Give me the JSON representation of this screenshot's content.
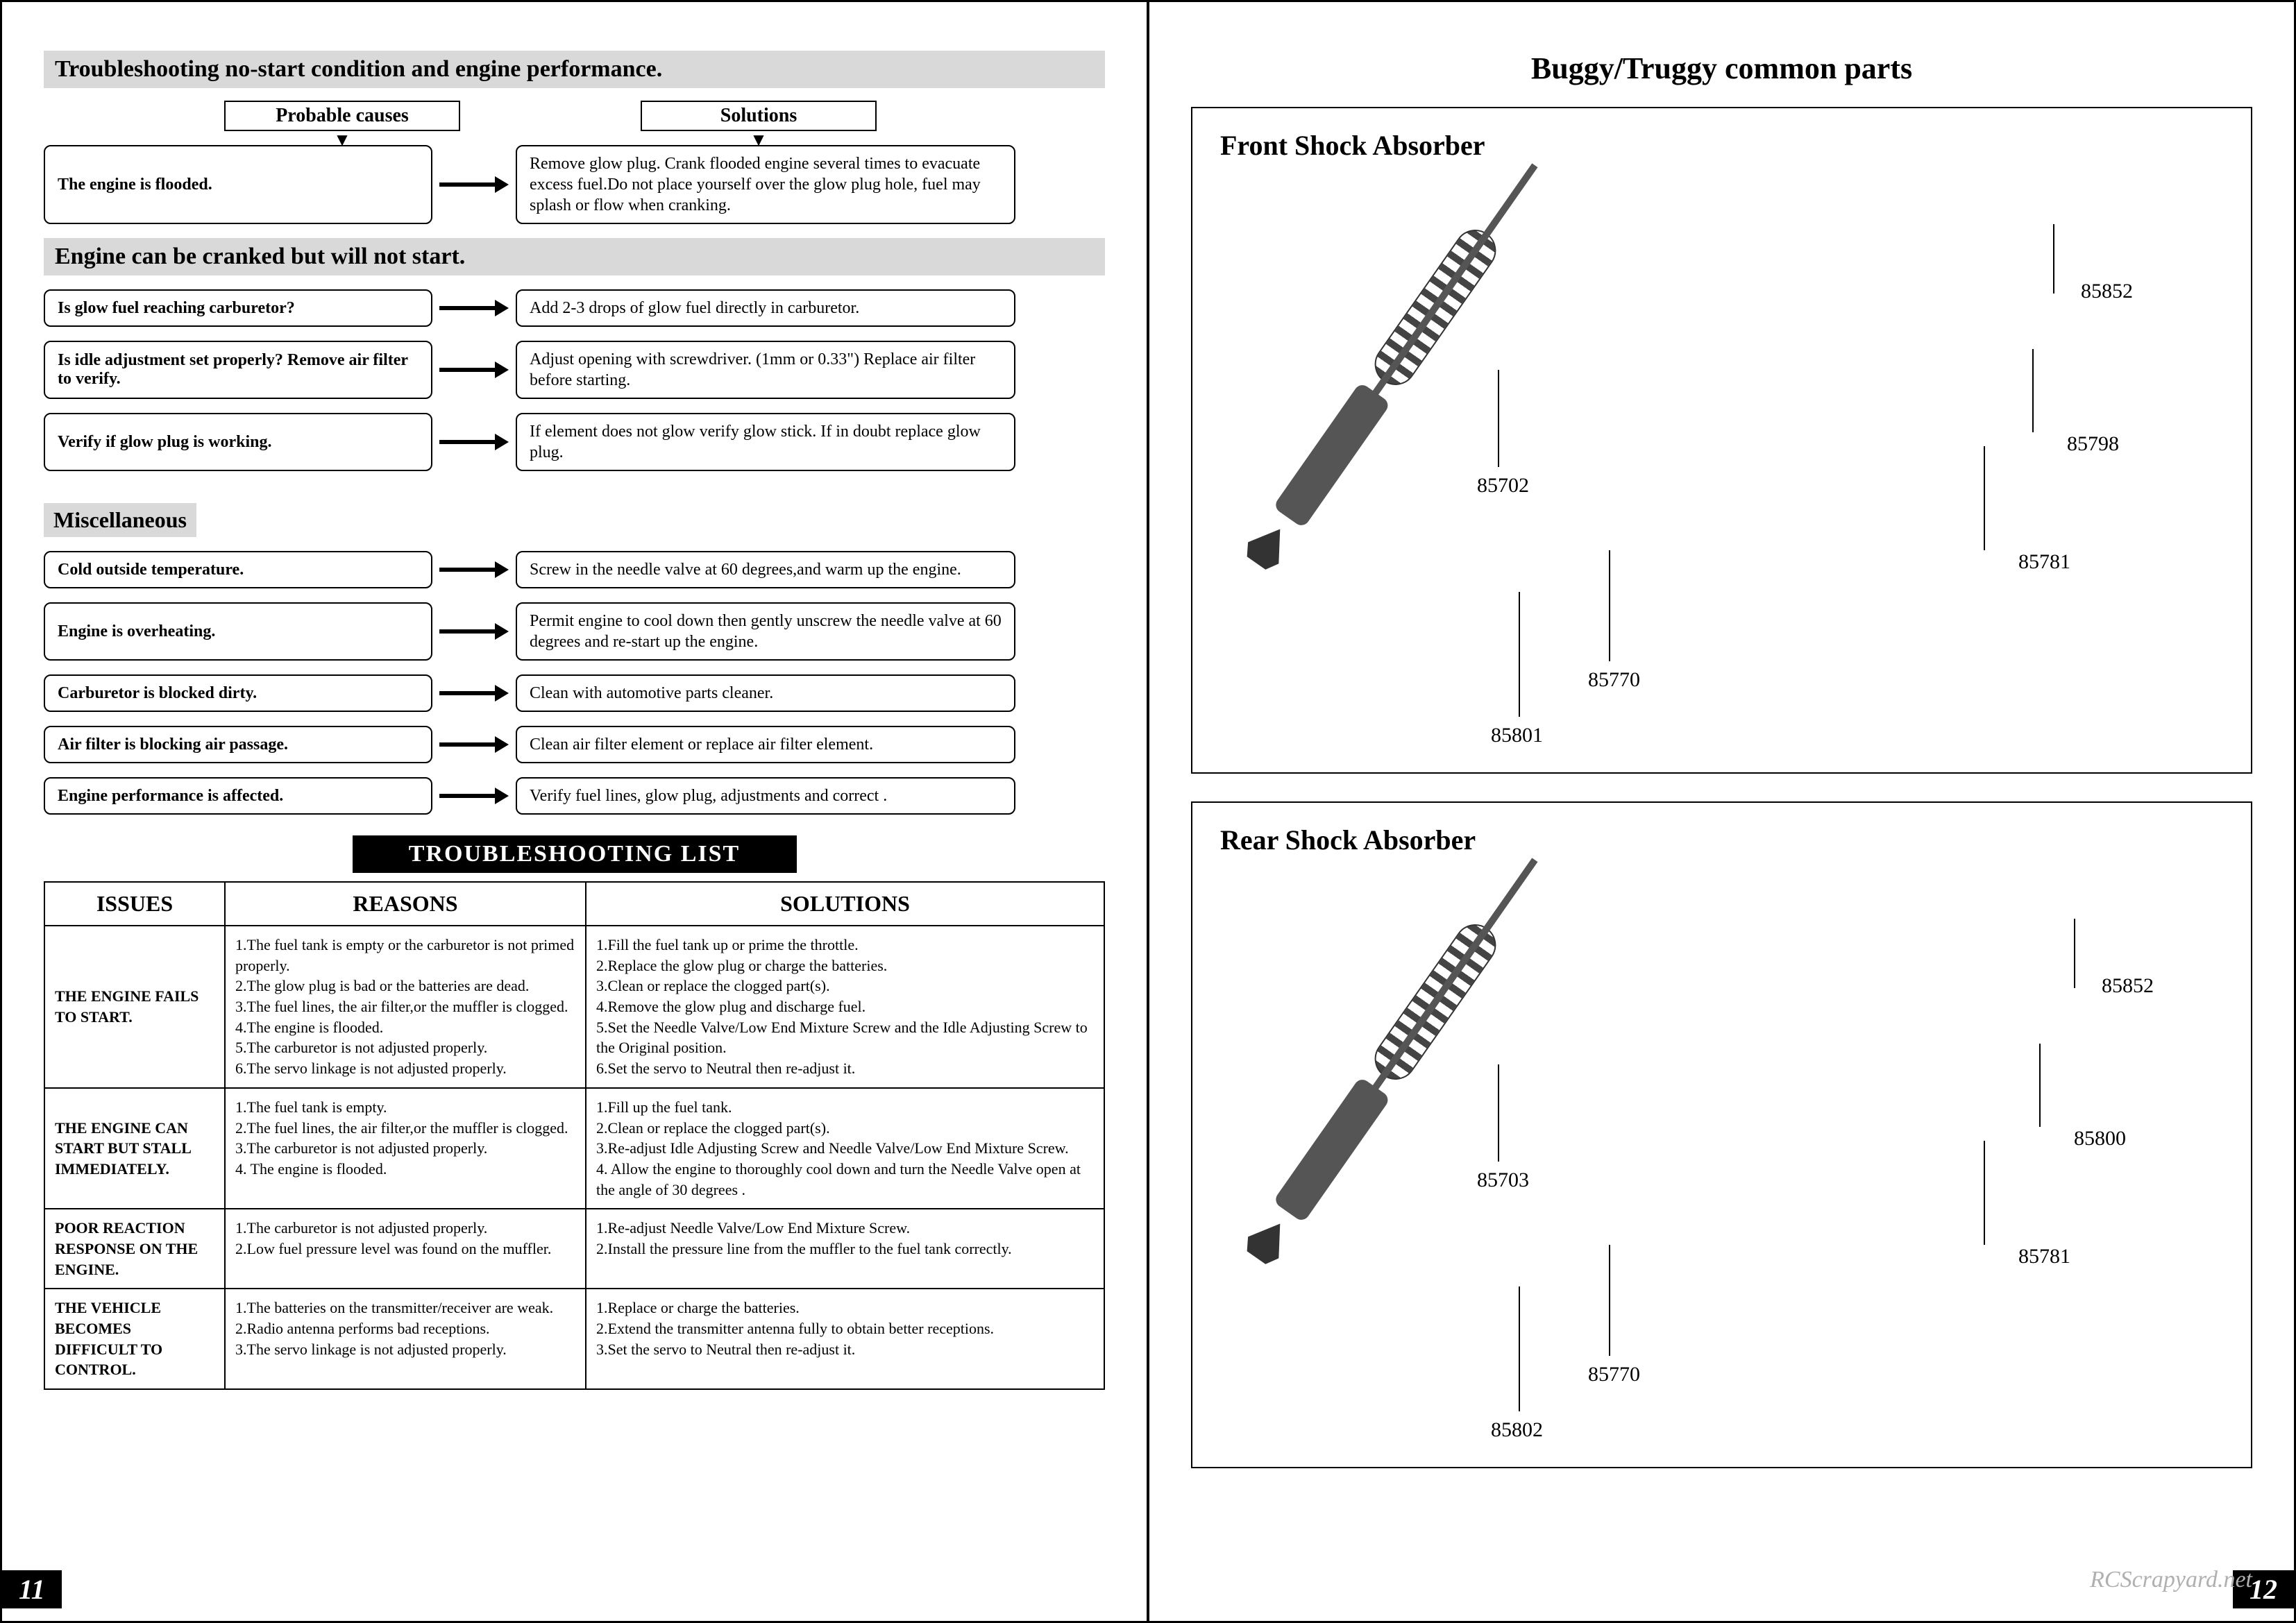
{
  "header_right": "Buggy/Truggy common parts",
  "left": {
    "sec1_title": "Troubleshooting no-start condition and engine performance.",
    "col1": "Probable causes",
    "col2": "Solutions",
    "rows1": [
      {
        "cause": "The engine is flooded.",
        "solution": "Remove glow plug. Crank flooded engine several times to evacuate excess fuel.Do not place yourself over the glow plug hole, fuel may splash or flow when cranking."
      }
    ],
    "sec2_title": "Engine can be cranked but will not start.",
    "rows2": [
      {
        "cause": "Is glow fuel reaching carburetor?",
        "solution": "Add 2-3 drops of glow fuel directly in carburetor."
      },
      {
        "cause": "Is idle adjustment set properly? Remove air filter to verify.",
        "solution": "Adjust opening with screwdriver. (1mm or 0.33\") Replace air filter before starting."
      },
      {
        "cause": "Verify if glow plug is working.",
        "solution": "If element does not glow verify glow stick. If in doubt replace glow plug."
      }
    ],
    "sec3_title": "Miscellaneous",
    "rows3": [
      {
        "cause": "Cold outside temperature.",
        "solution": "Screw in the needle valve at 60 degrees,and warm up the engine."
      },
      {
        "cause": "Engine is overheating.",
        "solution": "Permit engine to cool down then gently unscrew the needle valve at 60 degrees and re-start up the engine."
      },
      {
        "cause": "Carburetor is blocked dirty.",
        "solution": "Clean with automotive parts cleaner."
      },
      {
        "cause": "Air filter is blocking air passage.",
        "solution": "Clean air filter element or replace air filter element."
      },
      {
        "cause": "Engine performance is affected.",
        "solution": "Verify fuel lines, glow plug, adjustments and correct ."
      }
    ],
    "tlist_title": "TROUBLESHOOTING  LIST",
    "tlist_headers": {
      "issues": "ISSUES",
      "reasons": "REASONS",
      "solutions": "SOLUTIONS"
    },
    "tlist": [
      {
        "issue": "THE ENGINE FAILS TO START.",
        "reasons": "1.The fuel tank is empty or the carburetor is not primed properly.\n2.The glow plug is bad or the batteries are dead.\n3.The fuel lines, the air filter,or the muffler is clogged.\n4.The engine is flooded.\n5.The carburetor is not adjusted properly.\n6.The servo linkage is not adjusted properly.",
        "solutions": "1.Fill the fuel tank up or prime the throttle.\n2.Replace the glow plug or charge the batteries.\n3.Clean or replace the clogged part(s).\n4.Remove the glow plug and discharge fuel.\n5.Set the Needle Valve/Low End Mixture Screw and the Idle Adjusting Screw to the Original position.\n6.Set the servo to Neutral then re-adjust it."
      },
      {
        "issue": "THE ENGINE CAN START BUT STALL IMMEDIATELY.",
        "reasons": "1.The fuel tank is empty.\n2.The fuel lines, the air filter,or the muffler is clogged.\n3.The carburetor is not adjusted properly.\n4. The engine is flooded.",
        "solutions": "1.Fill up the fuel tank.\n2.Clean or replace the clogged part(s).\n3.Re-adjust Idle Adjusting Screw and Needle Valve/Low End Mixture Screw.\n4. Allow the engine to thoroughly cool down and turn the Needle Valve open at the angle of 30 degrees ."
      },
      {
        "issue": "POOR REACTION RESPONSE ON THE ENGINE.",
        "reasons": "1.The carburetor is not adjusted properly.\n2.Low fuel pressure level was found on the muffler.",
        "solutions": "1.Re-adjust Needle Valve/Low End Mixture Screw.\n2.Install the pressure line from the muffler to the fuel tank correctly."
      },
      {
        "issue": "THE VEHICLE BECOMES DIFFICULT TO CONTROL.",
        "reasons": "1.The batteries on the transmitter/receiver are weak.\n2.Radio antenna performs bad receptions.\n3.The servo linkage is not adjusted properly.",
        "solutions": "1.Replace or charge the batteries.\n2.Extend the transmitter antenna fully to obtain better receptions.\n3.Set the servo to Neutral then re-adjust it."
      }
    ]
  },
  "right": {
    "front_title": "Front Shock Absorber",
    "rear_title": "Rear Shock Absorber",
    "front_parts": [
      "85702",
      "85852",
      "85798",
      "85781",
      "85770",
      "85801"
    ],
    "rear_parts": [
      "85703",
      "85852",
      "85800",
      "85781",
      "85770",
      "85802"
    ]
  },
  "pagenum_left": "11",
  "pagenum_right": "12",
  "watermark": "RCScrapyard.net",
  "colors": {
    "section_bg": "#d9d9d9",
    "black": "#000000",
    "white": "#ffffff",
    "watermark": "#b0b0b0"
  }
}
